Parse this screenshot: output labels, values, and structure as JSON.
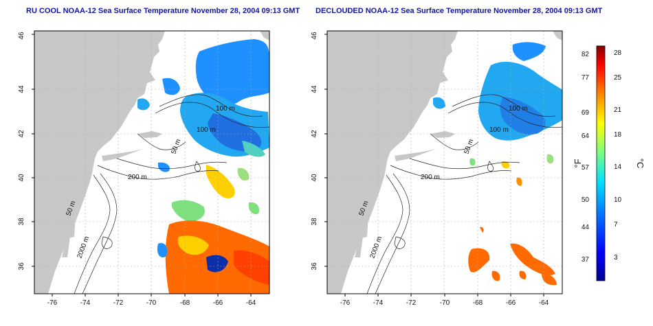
{
  "maps": [
    {
      "title": "RU COOL NOAA-12 Sea Surface Temperature November 28, 2004 09:13 GMT",
      "x_ticks": [
        "-76",
        "-74",
        "-72",
        "-70",
        "-68",
        "-66",
        "-64"
      ],
      "y_ticks": [
        "36",
        "38",
        "40",
        "42",
        "44",
        "46"
      ],
      "contour_labels": [
        "100 m",
        "100 m",
        "50 m",
        "200 m",
        "50 m",
        "2000 m"
      ]
    },
    {
      "title": "DECLOUDED NOAA-12 Sea Surface Temperature November 28, 2004 09:13 GMT",
      "x_ticks": [
        "-76",
        "-74",
        "-72",
        "-70",
        "-68",
        "-66",
        "-64"
      ],
      "y_ticks": [
        "36",
        "38",
        "40",
        "42",
        "44",
        "46"
      ],
      "contour_labels": [
        "100 m",
        "100 m",
        "50 m",
        "200 m",
        "50 m",
        "2000 m"
      ]
    }
  ],
  "colorbar": {
    "unit_f": "°F",
    "unit_c": "°C",
    "f_ticks": [
      "82",
      "77",
      "69",
      "64",
      "57",
      "50",
      "44",
      "37"
    ],
    "c_ticks": [
      "28",
      "25",
      "21",
      "18",
      "14",
      "10",
      "7",
      "3"
    ]
  },
  "colors": {
    "title": "#1414a0",
    "land": "#c8c8c8",
    "cold": "#1e90ff",
    "warm": "#ff6a00"
  }
}
